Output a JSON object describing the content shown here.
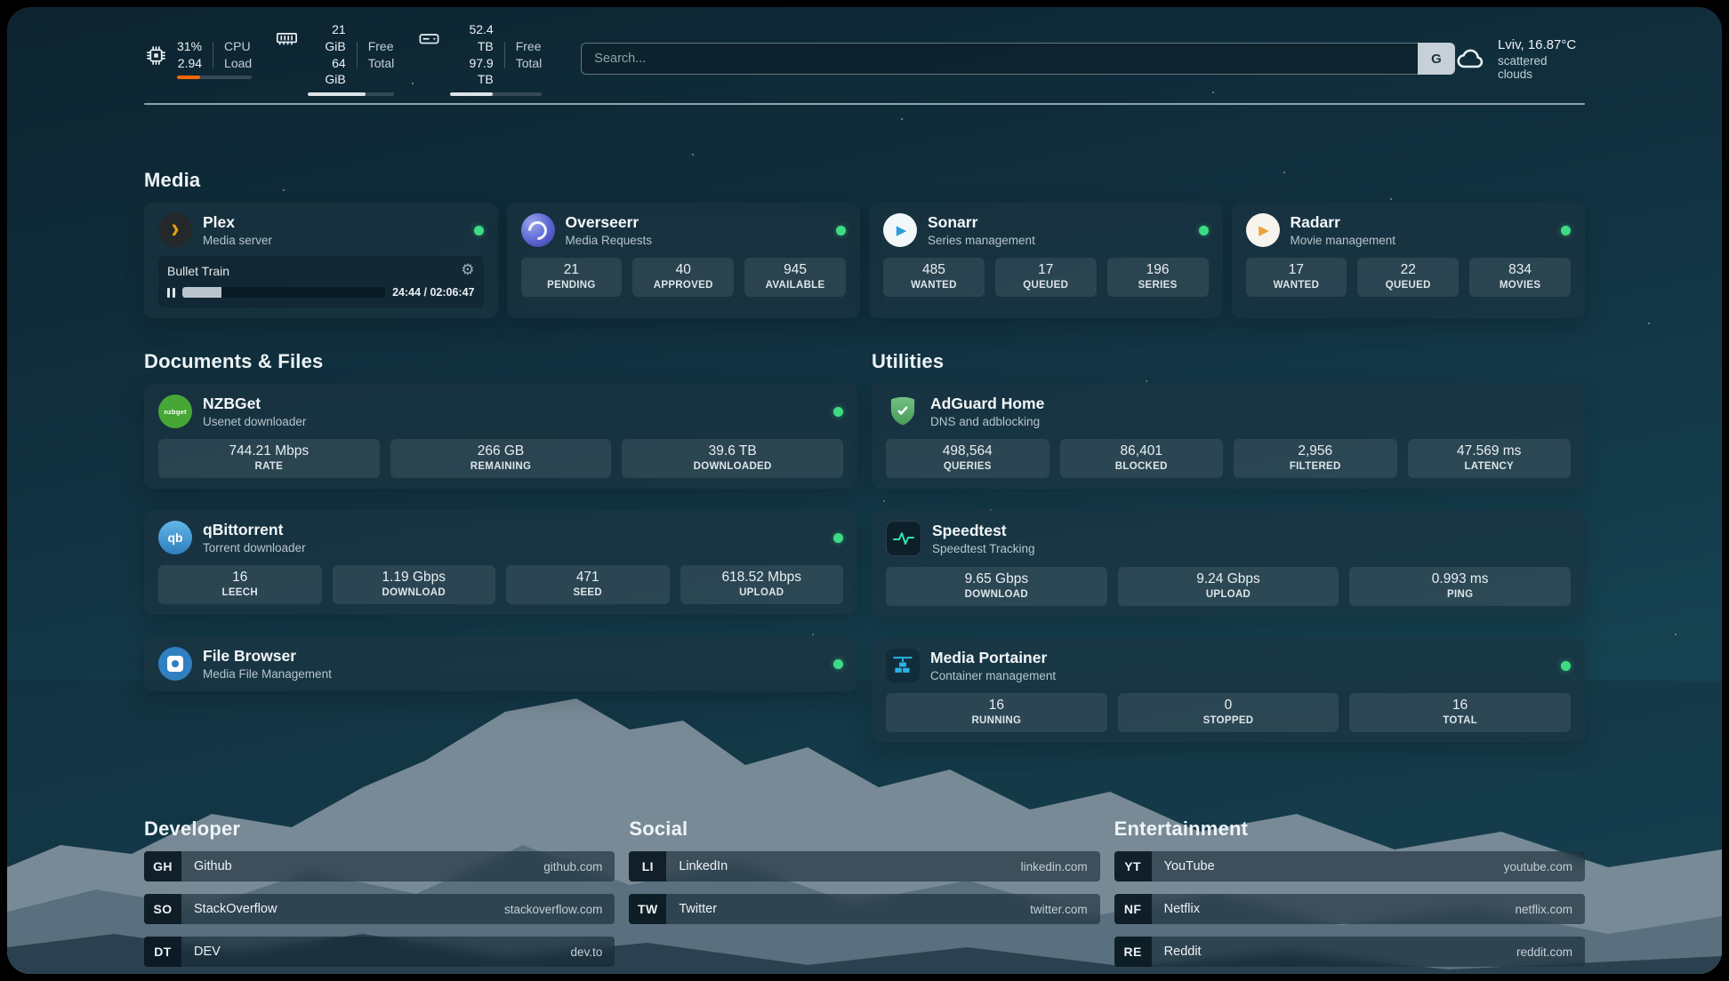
{
  "colors": {
    "status_online": "#3ddc84",
    "cpu_bar": "#f76707"
  },
  "topbar": {
    "cpu": {
      "percent": "31%",
      "load": "2.94",
      "label_top": "CPU",
      "label_bottom": "Load",
      "bar_percent": 31
    },
    "memory": {
      "free": "21 GiB",
      "total": "64 GiB",
      "label_top": "Free",
      "label_bottom": "Total",
      "bar_percent": 67
    },
    "disk": {
      "free": "52.4 TB",
      "total": "97.9 TB",
      "label_top": "Free",
      "label_bottom": "Total",
      "bar_percent": 46
    },
    "search": {
      "placeholder": "Search...",
      "engine_button": "G"
    },
    "weather": {
      "location": "Lviv, 16.87°C",
      "condition": "scattered clouds"
    }
  },
  "sections": {
    "media": {
      "title": "Media"
    },
    "documents": {
      "title": "Documents & Files"
    },
    "utilities": {
      "title": "Utilities"
    },
    "developer": {
      "title": "Developer"
    },
    "social": {
      "title": "Social"
    },
    "entertainment": {
      "title": "Entertainment"
    }
  },
  "apps": {
    "plex": {
      "title": "Plex",
      "subtitle": "Media server",
      "now_playing": "Bullet Train",
      "time": "24:44 / 02:06:47",
      "progress_percent": 19.5
    },
    "overseerr": {
      "title": "Overseerr",
      "subtitle": "Media Requests",
      "stats": [
        {
          "value": "21",
          "label": "PENDING"
        },
        {
          "value": "40",
          "label": "APPROVED"
        },
        {
          "value": "945",
          "label": "AVAILABLE"
        }
      ]
    },
    "sonarr": {
      "title": "Sonarr",
      "subtitle": "Series management",
      "stats": [
        {
          "value": "485",
          "label": "WANTED"
        },
        {
          "value": "17",
          "label": "QUEUED"
        },
        {
          "value": "196",
          "label": "SERIES"
        }
      ]
    },
    "radarr": {
      "title": "Radarr",
      "subtitle": "Movie management",
      "stats": [
        {
          "value": "17",
          "label": "WANTED"
        },
        {
          "value": "22",
          "label": "QUEUED"
        },
        {
          "value": "834",
          "label": "MOVIES"
        }
      ]
    },
    "nzbget": {
      "title": "NZBGet",
      "subtitle": "Usenet downloader",
      "stats": [
        {
          "value": "744.21 Mbps",
          "label": "RATE"
        },
        {
          "value": "266 GB",
          "label": "REMAINING"
        },
        {
          "value": "39.6 TB",
          "label": "DOWNLOADED"
        }
      ]
    },
    "qbittorrent": {
      "title": "qBittorrent",
      "subtitle": "Torrent downloader",
      "stats": [
        {
          "value": "16",
          "label": "LEECH"
        },
        {
          "value": "1.19 Gbps",
          "label": "DOWNLOAD"
        },
        {
          "value": "471",
          "label": "SEED"
        },
        {
          "value": "618.52 Mbps",
          "label": "UPLOAD"
        }
      ]
    },
    "filebrowser": {
      "title": "File Browser",
      "subtitle": "Media File Management"
    },
    "adguard": {
      "title": "AdGuard Home",
      "subtitle": "DNS and adblocking",
      "stats": [
        {
          "value": "498,564",
          "label": "QUERIES"
        },
        {
          "value": "86,401",
          "label": "BLOCKED"
        },
        {
          "value": "2,956",
          "label": "FILTERED"
        },
        {
          "value": "47.569 ms",
          "label": "LATENCY"
        }
      ]
    },
    "speedtest": {
      "title": "Speedtest",
      "subtitle": "Speedtest Tracking",
      "stats": [
        {
          "value": "9.65 Gbps",
          "label": "DOWNLOAD"
        },
        {
          "value": "9.24 Gbps",
          "label": "UPLOAD"
        },
        {
          "value": "0.993 ms",
          "label": "PING"
        }
      ]
    },
    "portainer": {
      "title": "Media Portainer",
      "subtitle": "Container management",
      "stats": [
        {
          "value": "16",
          "label": "RUNNING"
        },
        {
          "value": "0",
          "label": "STOPPED"
        },
        {
          "value": "16",
          "label": "TOTAL"
        }
      ]
    }
  },
  "icons": {
    "plex_glyph": "›",
    "sonarr_glyph": "▶",
    "radarr_glyph": "▶",
    "nzbget_text": "nzbget",
    "qbittorrent_text": "qb"
  },
  "bookmarks": {
    "developer": [
      {
        "abbr": "GH",
        "name": "Github",
        "url": "github.com"
      },
      {
        "abbr": "SO",
        "name": "StackOverflow",
        "url": "stackoverflow.com"
      },
      {
        "abbr": "DT",
        "name": "DEV",
        "url": "dev.to"
      }
    ],
    "social": [
      {
        "abbr": "LI",
        "name": "LinkedIn",
        "url": "linkedin.com"
      },
      {
        "abbr": "TW",
        "name": "Twitter",
        "url": "twitter.com"
      }
    ],
    "entertainment": [
      {
        "abbr": "YT",
        "name": "YouTube",
        "url": "youtube.com"
      },
      {
        "abbr": "NF",
        "name": "Netflix",
        "url": "netflix.com"
      },
      {
        "abbr": "RE",
        "name": "Reddit",
        "url": "reddit.com"
      }
    ]
  }
}
